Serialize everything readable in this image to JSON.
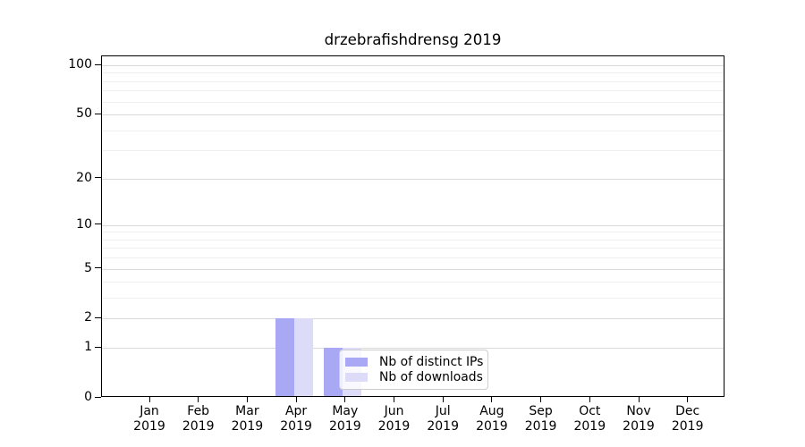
{
  "title": "drzebrafishdrensg 2019",
  "chart_data": {
    "type": "bar",
    "title": "drzebrafishdrensg 2019",
    "x_year": "2019",
    "categories": [
      "Jan",
      "Feb",
      "Mar",
      "Apr",
      "May",
      "Jun",
      "Jul",
      "Aug",
      "Sep",
      "Oct",
      "Nov",
      "Dec"
    ],
    "series": [
      {
        "name": "Nb of distinct IPs",
        "color": "#a8a8f4",
        "values": [
          0,
          0,
          0,
          2,
          1,
          0,
          0,
          0,
          0,
          0,
          0,
          0
        ]
      },
      {
        "name": "Nb of downloads",
        "color": "#dcdcf8",
        "values": [
          0,
          0,
          0,
          2,
          1,
          0,
          0,
          0,
          0,
          0,
          0,
          0
        ]
      }
    ],
    "yscale": "log1p",
    "ylim": [
      0,
      114
    ],
    "yticks": [
      0,
      1,
      2,
      5,
      10,
      20,
      50,
      100
    ],
    "yticks_minor": [
      3,
      4,
      6,
      7,
      8,
      9,
      30,
      40,
      60,
      70,
      80,
      90
    ],
    "grid": true,
    "legend_position": "lower center",
    "colors": {
      "major_grid": "#d9d9d9",
      "minor_grid": "#efefef",
      "spine": "#000000",
      "text": "#000000",
      "background": "#ffffff"
    }
  }
}
